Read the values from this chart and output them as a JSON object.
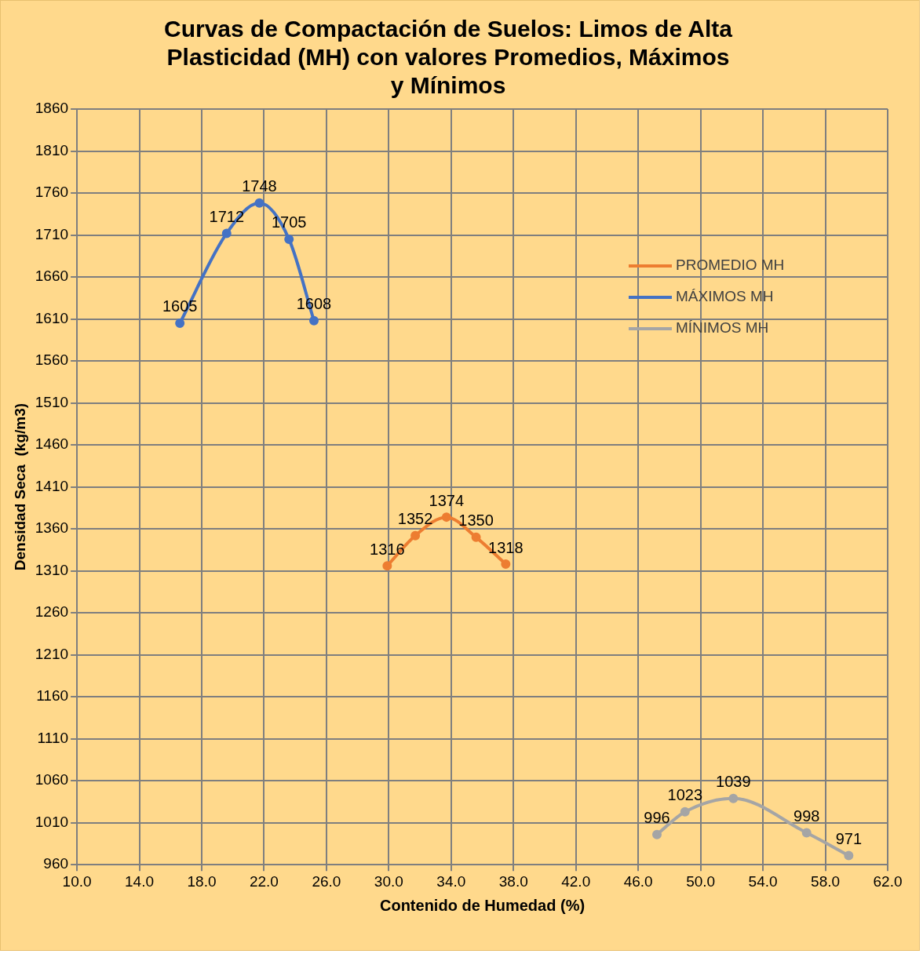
{
  "chart_data": {
    "type": "line",
    "title": "Curvas de Compactación de Suelos: Limos de Alta Plasticidad (MH) con valores Promedios, Máximos y Mínimos",
    "xlabel": "Contenido de Humedad (%)",
    "ylabel": "Densidad Seca  (kg/m3)",
    "series": [
      {
        "name": "PROMEDIO MH",
        "color": "#ed7d31",
        "x": [
          29.9,
          31.7,
          33.7,
          35.6,
          37.5
        ],
        "values": [
          1316,
          1352,
          1374,
          1350,
          1318
        ]
      },
      {
        "name": "MÁXIMOS MH",
        "color": "#4472c4",
        "x": [
          16.6,
          19.6,
          21.7,
          23.6,
          25.2
        ],
        "values": [
          1605,
          1712,
          1748,
          1705,
          1608
        ]
      },
      {
        "name": "MÍNIMOS MH",
        "color": "#a5a5a5",
        "x": [
          47.2,
          49.0,
          52.1,
          56.8,
          59.5
        ],
        "values": [
          996,
          1023,
          1039,
          998,
          971
        ]
      }
    ],
    "xlim": [
      10,
      62
    ],
    "xticks": [
      {
        "value": 10,
        "label": "10.0"
      },
      {
        "value": 14,
        "label": "14.0"
      },
      {
        "value": 18,
        "label": "18.0"
      },
      {
        "value": 22,
        "label": "22.0"
      },
      {
        "value": 26,
        "label": "26.0"
      },
      {
        "value": 30,
        "label": "30.0"
      },
      {
        "value": 34,
        "label": "34.0"
      },
      {
        "value": 38,
        "label": "38.0"
      },
      {
        "value": 42,
        "label": "42.0"
      },
      {
        "value": 46,
        "label": "46.0"
      },
      {
        "value": 50,
        "label": "50.0"
      },
      {
        "value": 54,
        "label": "54.0"
      },
      {
        "value": 58,
        "label": "58.0"
      },
      {
        "value": 62,
        "label": "62.0"
      }
    ],
    "ylim": [
      960,
      1860
    ],
    "yticks": [
      960,
      1010,
      1060,
      1110,
      1160,
      1210,
      1260,
      1310,
      1360,
      1410,
      1460,
      1510,
      1560,
      1610,
      1660,
      1710,
      1760,
      1810,
      1860
    ],
    "grid": true,
    "legend": "right",
    "marker": "circle",
    "line_style": "solid",
    "data_labels": true
  }
}
